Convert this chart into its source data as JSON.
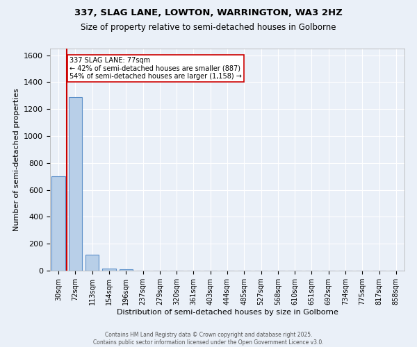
{
  "title_line1": "337, SLAG LANE, LOWTON, WARRINGTON, WA3 2HZ",
  "title_line2": "Size of property relative to semi-detached houses in Golborne",
  "xlabel": "Distribution of semi-detached houses by size in Golborne",
  "ylabel": "Number of semi-detached properties",
  "categories": [
    "30sqm",
    "72sqm",
    "113sqm",
    "154sqm",
    "196sqm",
    "237sqm",
    "279sqm",
    "320sqm",
    "361sqm",
    "403sqm",
    "444sqm",
    "485sqm",
    "527sqm",
    "568sqm",
    "610sqm",
    "651sqm",
    "692sqm",
    "734sqm",
    "775sqm",
    "817sqm",
    "858sqm"
  ],
  "values": [
    700,
    1290,
    120,
    15,
    8,
    0,
    0,
    0,
    0,
    0,
    0,
    0,
    0,
    0,
    0,
    0,
    0,
    0,
    0,
    0,
    0
  ],
  "bar_color": "#b8cfe8",
  "bar_edge_color": "#5b8fc9",
  "property_label": "337 SLAG LANE: 77sqm",
  "annotation_line1": "← 42% of semi-detached houses are smaller (887)",
  "annotation_line2": "54% of semi-detached houses are larger (1,158) →",
  "annotation_box_color": "#ffffff",
  "annotation_box_edge": "#cc0000",
  "red_line_color": "#cc0000",
  "ylim": [
    0,
    1650
  ],
  "yticks": [
    0,
    200,
    400,
    600,
    800,
    1000,
    1200,
    1400,
    1600
  ],
  "background_color": "#eaf0f8",
  "grid_color": "#ffffff",
  "footer_line1": "Contains HM Land Registry data © Crown copyright and database right 2025.",
  "footer_line2": "Contains public sector information licensed under the Open Government Licence v3.0."
}
